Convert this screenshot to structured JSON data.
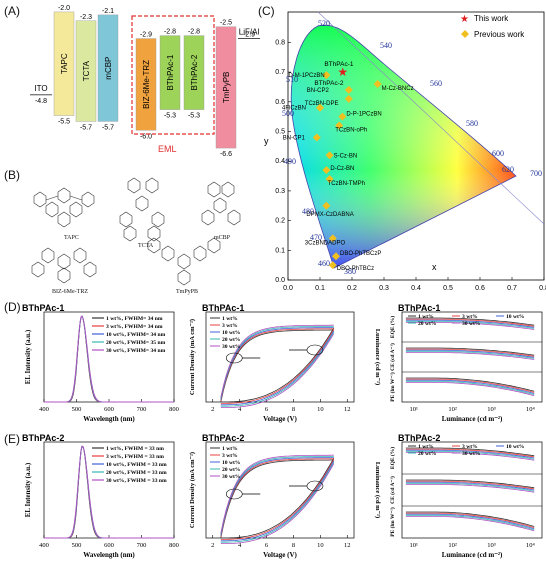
{
  "panels": {
    "a": "(A)",
    "b": "(B)",
    "c": "(C)",
    "d": "(D)",
    "e": "(E)"
  },
  "panel_a": {
    "layers": [
      {
        "name": "ITO",
        "top": "",
        "bottom": "-4.8",
        "color": "#ffffff"
      },
      {
        "name": "TAPC",
        "top": "-2.0",
        "bottom": "-5.5",
        "color": "#f4e89a"
      },
      {
        "name": "TCTA",
        "top": "-2.3",
        "bottom": "-5.7",
        "color": "#dbe9a0"
      },
      {
        "name": "mCBP",
        "top": "-2.1",
        "bottom": "-5.7",
        "color": "#7fc6d8"
      },
      {
        "name": "BIZ-6Me-TRZ",
        "top": "-2.9",
        "bottom": "-6.0",
        "color": "#f0a23e"
      },
      {
        "name": "BThPAc-1",
        "top": "-2.8",
        "bottom": "-5.3",
        "color": "#9ed35a"
      },
      {
        "name": "BThPAc-2",
        "top": "-2.8",
        "bottom": "-5.3",
        "color": "#9ed35a"
      },
      {
        "name": "TmPyPB",
        "top": "-2.5",
        "bottom": "-6.6",
        "color": "#f08ea0"
      },
      {
        "name": "LiF/Al",
        "top": "-2.9",
        "bottom": "",
        "color": "#ffffff"
      }
    ],
    "eml_label": "EML"
  },
  "panel_b": {
    "molecules": [
      "TAPC",
      "TCTA",
      "mCBP",
      "BIZ-6Me-TRZ",
      "TmPyPB"
    ]
  },
  "panel_c": {
    "xlabel": "x",
    "ylabel": "y",
    "legend": [
      "This work",
      "Previous work"
    ],
    "wavelengths": [
      "520",
      "540",
      "560",
      "580",
      "600",
      "620",
      "700",
      "510",
      "500",
      "490",
      "480",
      "470",
      "460",
      "380"
    ],
    "yticks": [
      "0.0",
      "0.1",
      "0.2",
      "0.3",
      "0.4",
      "0.5",
      "0.6",
      "0.7",
      "0.8"
    ],
    "xticks": [
      "0.0",
      "0.1",
      "0.2",
      "0.3",
      "0.4",
      "0.5",
      "0.6",
      "0.7",
      "0.8"
    ],
    "this_work_labels": [
      "BThPAc-1",
      "BThPAc-2"
    ],
    "previous_labels": [
      "D-M-1PCzBN",
      "M-Cz-BNCz",
      "BN-CP2",
      "TCzBN-DPE",
      "4FlCzBN",
      "D-P-1PCzBN",
      "TCzBN-oPh",
      "BN-CP1",
      "S-Cz-BN",
      "D-Cz-BN",
      "TCzBN-TMPh",
      "DPMX-CzDABNA",
      "3CzBNDADPO",
      "DBO-PhTBCzP",
      "DBO-PhTBCz"
    ]
  },
  "chart_data": [
    {
      "type": "line",
      "title": "BThPAc-1",
      "xlabel": "Wavelength (nm)",
      "ylabel": "EL Intensity (a.u.)",
      "xlim": [
        400,
        800
      ],
      "xticks": [
        "400",
        "500",
        "600",
        "700",
        "800"
      ],
      "peak_nm": 516,
      "series": [
        {
          "name": "1 wt%, FWHM= 34 nm",
          "color": "#333333"
        },
        {
          "name": "3 wt%, FWHM= 34 nm",
          "color": "#e84040"
        },
        {
          "name": "10 wt%, FWHM= 34 nm",
          "color": "#4060d8"
        },
        {
          "name": "20 wt%, FWHM= 35 nm",
          "color": "#38b8b0"
        },
        {
          "name": "30 wt%, FWHM= 34 nm",
          "color": "#b050c0"
        }
      ]
    },
    {
      "type": "line",
      "title": "BThPAc-1",
      "xlabel": "Voltage (V)",
      "ylabel": "Current Density (mA cm⁻²)",
      "ylabel2": "Luminance (cd m⁻²)",
      "xticks": [
        "2",
        "4",
        "6",
        "8",
        "10",
        "12"
      ],
      "series": [
        "1 wt%",
        "3 wt%",
        "10 wt%",
        "20 wt%",
        "30 wt%"
      ]
    },
    {
      "type": "line",
      "title": "BThPAc-1",
      "xlabel": "Luminance (cd m⁻²)",
      "ylabels": [
        "EQE (%)",
        "CE (cd A⁻¹)",
        "PE (lm W⁻¹)"
      ],
      "xticks": [
        "10¹",
        "10²",
        "10³",
        "10⁴"
      ],
      "series": [
        "1 wt%",
        "3 wt%",
        "10 wt%",
        "20 wt%",
        "30 wt%"
      ]
    },
    {
      "type": "line",
      "title": "BThPAc-2",
      "xlabel": "Wavelength (nm)",
      "ylabel": "EL Intensity (a.u.)",
      "xlim": [
        400,
        800
      ],
      "xticks": [
        "400",
        "500",
        "600",
        "700",
        "800"
      ],
      "peak_nm": 518,
      "series": [
        {
          "name": "1 wt%, FWHM = 33 nm",
          "color": "#333333"
        },
        {
          "name": "3 wt%, FWHM = 33 nm",
          "color": "#e84040"
        },
        {
          "name": "10 wt%, FWHM = 33 nm",
          "color": "#4060d8"
        },
        {
          "name": "20 wt%, FWHM = 33 nm",
          "color": "#38b8b0"
        },
        {
          "name": "30 wt%, FWHM = 33 nm",
          "color": "#b050c0"
        }
      ]
    },
    {
      "type": "line",
      "title": "BThPAc-2",
      "xlabel": "Voltage (V)",
      "ylabel": "Current Density (mA cm⁻²)",
      "ylabel2": "Luminance (cd m⁻²)",
      "xticks": [
        "2",
        "4",
        "6",
        "8",
        "10",
        "12"
      ],
      "series": [
        "1 wt%",
        "3 wt%",
        "10 wt%",
        "20 wt%",
        "30 wt%"
      ]
    },
    {
      "type": "line",
      "title": "BThPAc-2",
      "xlabel": "Luminance (cd m⁻²)",
      "ylabels": [
        "EQE (%)",
        "CE (cd A⁻¹)",
        "PE (lm W⁻¹)"
      ],
      "xticks": [
        "10¹",
        "10²",
        "10³",
        "10⁴"
      ],
      "series": [
        "1 wt%",
        "3 wt%",
        "10 wt%",
        "20 wt%",
        "30 wt%"
      ]
    }
  ],
  "colors": {
    "s1": "#333333",
    "s3": "#e84040",
    "s10": "#4060d8",
    "s20": "#38b8b0",
    "s30": "#b050c0",
    "eml_box": "#e03030",
    "star": "#e02020",
    "diamond": "#f0c020"
  }
}
